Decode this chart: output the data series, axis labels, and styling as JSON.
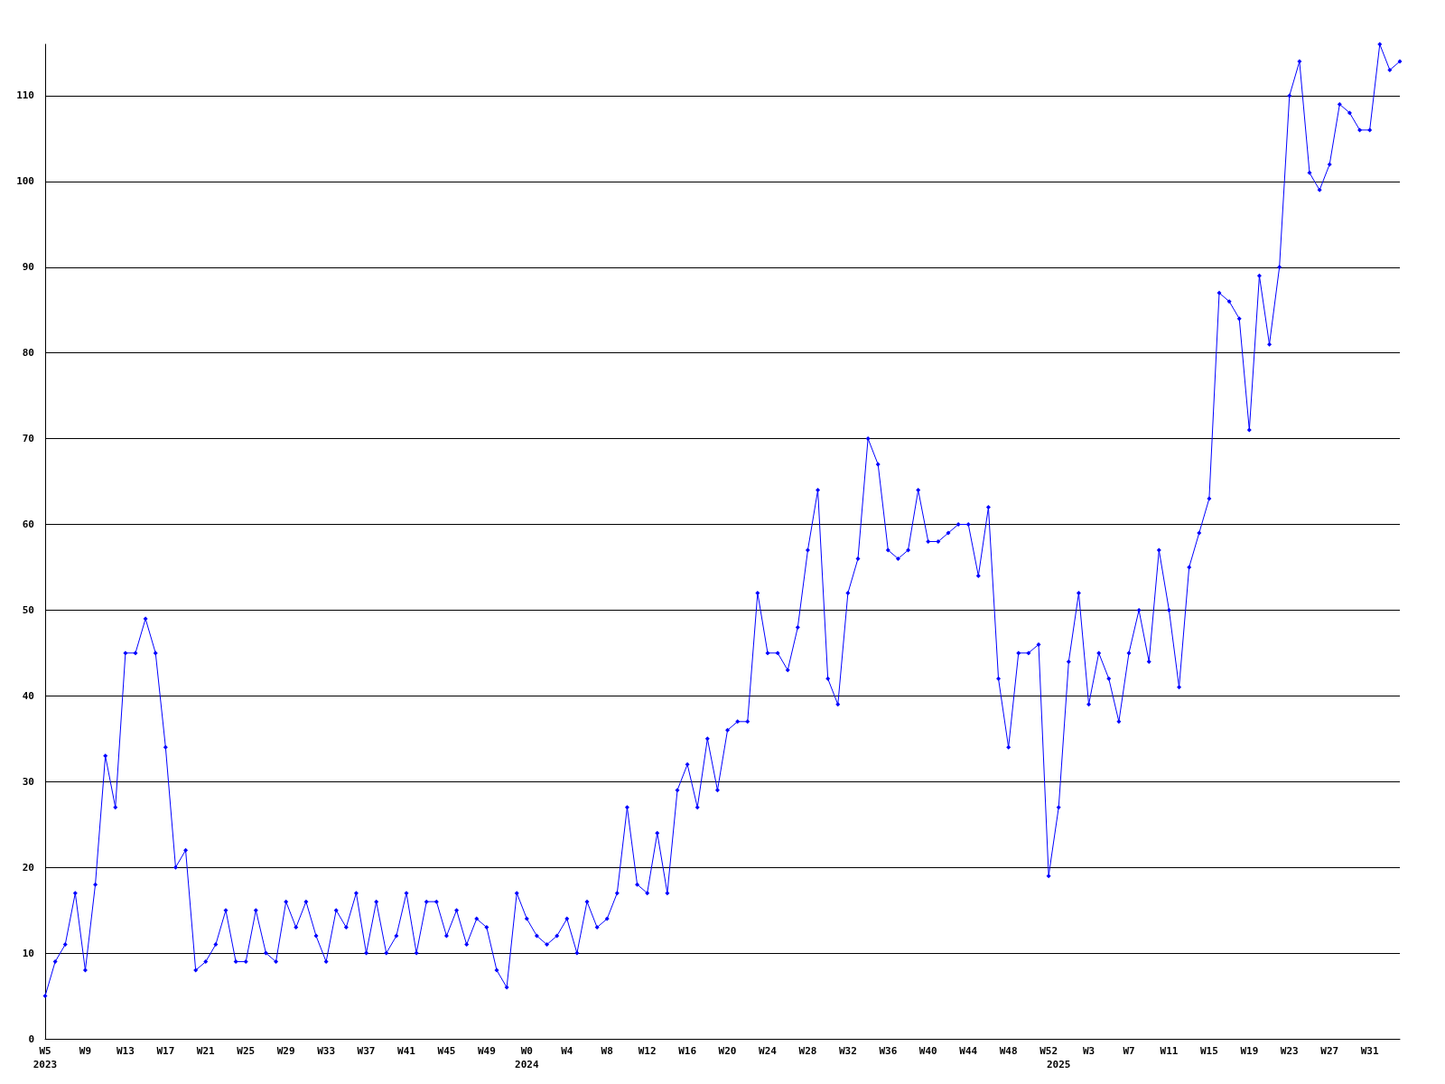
{
  "chart_data": {
    "type": "line",
    "color": "#0000ff",
    "marker": "diamond",
    "grid": "y",
    "categories": [
      "W5\n2023",
      null,
      null,
      null,
      "W9",
      null,
      null,
      null,
      "W13",
      null,
      null,
      null,
      "W17",
      null,
      null,
      null,
      "W21",
      null,
      null,
      null,
      "W25",
      null,
      null,
      null,
      "W29",
      null,
      null,
      null,
      "W33",
      null,
      null,
      null,
      "W37",
      null,
      null,
      null,
      "W41",
      null,
      null,
      null,
      "W45",
      null,
      null,
      null,
      "W49",
      null,
      null,
      null,
      "W0\n2024",
      null,
      null,
      null,
      "W4",
      null,
      null,
      null,
      "W8",
      null,
      null,
      null,
      "W12",
      null,
      null,
      null,
      "W16",
      null,
      null,
      null,
      "W20",
      null,
      null,
      null,
      "W24",
      null,
      null,
      null,
      "W28",
      null,
      null,
      null,
      "W32",
      null,
      null,
      null,
      "W36",
      null,
      null,
      null,
      "W40",
      null,
      null,
      null,
      "W44",
      null,
      null,
      null,
      "W48",
      null,
      null,
      null,
      "W52",
      "\n2025",
      null,
      null,
      "W3",
      null,
      null,
      null,
      "W7",
      null,
      null,
      null,
      "W11",
      null,
      null,
      null,
      "W15",
      null,
      null,
      null,
      "W19",
      null,
      null,
      null,
      "W23",
      null,
      null,
      null,
      "W27",
      null,
      null,
      null,
      "W31",
      null,
      null,
      null
    ],
    "values": [
      5,
      9,
      11,
      17,
      8,
      18,
      33,
      27,
      45,
      45,
      49,
      45,
      34,
      20,
      22,
      8,
      9,
      11,
      15,
      9,
      9,
      15,
      10,
      9,
      16,
      13,
      16,
      12,
      9,
      15,
      13,
      17,
      10,
      16,
      10,
      12,
      17,
      10,
      16,
      16,
      12,
      15,
      11,
      14,
      13,
      8,
      6,
      17,
      14,
      12,
      11,
      12,
      14,
      10,
      16,
      13,
      14,
      17,
      27,
      18,
      17,
      24,
      17,
      29,
      32,
      27,
      35,
      29,
      36,
      37,
      37,
      52,
      45,
      45,
      43,
      48,
      57,
      64,
      42,
      39,
      52,
      56,
      70,
      67,
      57,
      56,
      57,
      64,
      58,
      58,
      59,
      60,
      60,
      54,
      62,
      42,
      34,
      45,
      45,
      46,
      19,
      27,
      44,
      52,
      39,
      45,
      42,
      37,
      45,
      50,
      44,
      57,
      50,
      41,
      55,
      59,
      63,
      87,
      86,
      84,
      71,
      89,
      81,
      90,
      110,
      114,
      101,
      99,
      102,
      109,
      108,
      106,
      106,
      116,
      113,
      114
    ],
    "ylim": [
      0,
      116
    ],
    "yticks": [
      0,
      10,
      20,
      30,
      40,
      50,
      60,
      70,
      80,
      90,
      100,
      110
    ]
  }
}
